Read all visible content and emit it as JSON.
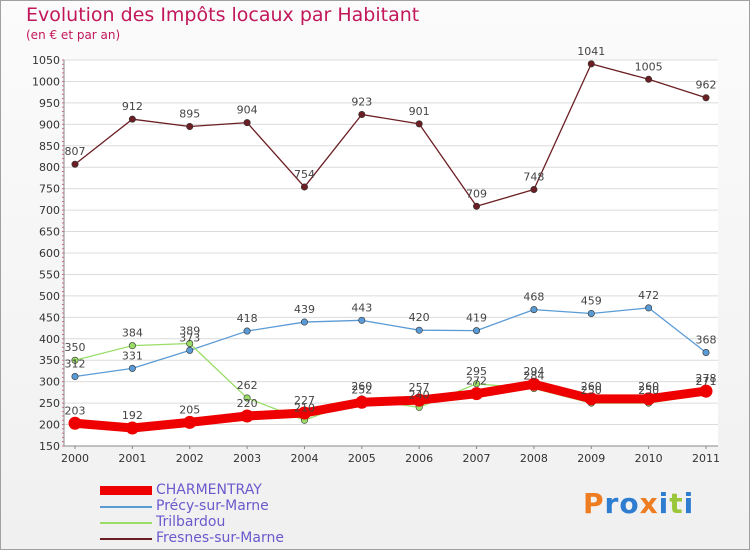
{
  "header": {
    "title": "Evolution des Impôts locaux par Habitant",
    "subtitle": "(en € et par an)"
  },
  "chart_data": {
    "type": "line",
    "title": "Evolution des Impôts locaux par Habitant",
    "subtitle": "(en € et par an)",
    "xlabel": "",
    "ylabel": "",
    "x": [
      "2000",
      "2001",
      "2002",
      "2003",
      "2004",
      "2005",
      "2006",
      "2007",
      "2008",
      "2009",
      "2010",
      "2011"
    ],
    "ylim": [
      150,
      1050
    ],
    "yticks": [
      150,
      200,
      250,
      300,
      350,
      400,
      450,
      500,
      550,
      600,
      650,
      700,
      750,
      800,
      850,
      900,
      950,
      1000,
      1050
    ],
    "grid": "horizontal",
    "legend_position": "bottom-left",
    "series": [
      {
        "name": "Fresnes-sur-Marne",
        "color": "#6b1f24",
        "values": [
          807,
          912,
          895,
          904,
          754,
          923,
          901,
          709,
          748,
          1041,
          1005,
          962
        ]
      },
      {
        "name": "Précy-sur-Marne",
        "color": "#5b9bd5",
        "values": [
          312,
          331,
          373,
          418,
          439,
          443,
          420,
          419,
          468,
          459,
          472,
          368
        ]
      },
      {
        "name": "Trilbardou",
        "color": "#99dd66",
        "values": [
          350,
          384,
          389,
          262,
          210,
          260,
          240,
          295,
          284,
          250,
          250,
          271
        ]
      },
      {
        "name": "CHARMENTRAY",
        "color": "#ee0000",
        "values": [
          203,
          192,
          205,
          220,
          227,
          252,
          257,
          272,
          294,
          260,
          260,
          278
        ]
      }
    ]
  },
  "legend": {
    "items": [
      {
        "name": "CHARMENTRAY",
        "color": "#ee0000"
      },
      {
        "name": "Précy-sur-Marne",
        "color": "#5b9bd5"
      },
      {
        "name": "Trilbardou",
        "color": "#99dd66"
      },
      {
        "name": "Fresnes-sur-Marne",
        "color": "#6b1f24"
      }
    ]
  },
  "logo": {
    "text": "Proxiti",
    "letters": [
      {
        "ch": "P",
        "color": "#ee7d22"
      },
      {
        "ch": "r",
        "color": "#2e7dd1"
      },
      {
        "ch": "o",
        "color": "#2e7dd1"
      },
      {
        "ch": "x",
        "color": "#ee7d22"
      },
      {
        "ch": "i",
        "color": "#2e7dd1"
      },
      {
        "ch": "t",
        "color": "#9ac63a"
      },
      {
        "ch": "i",
        "color": "#2e7dd1"
      }
    ]
  }
}
